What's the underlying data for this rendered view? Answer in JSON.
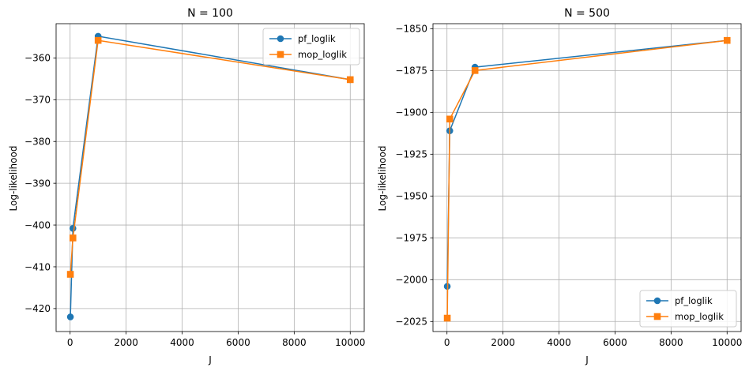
{
  "colors": {
    "pf": "#1f77b4",
    "mop": "#ff7f0e",
    "grid": "#b0b0b0"
  },
  "chart_data": [
    {
      "type": "line",
      "title": "N = 100",
      "xlabel": "J",
      "ylabel": "Log-likelihood",
      "xlim": [
        -500,
        10500
      ],
      "ylim": [
        -425.5,
        -351.8
      ],
      "xticks": [
        0,
        2000,
        4000,
        6000,
        8000,
        10000
      ],
      "xtick_labels": [
        "0",
        "2000",
        "4000",
        "6000",
        "8000",
        "10000"
      ],
      "yticks": [
        -420,
        -410,
        -400,
        -390,
        -380,
        -370,
        -360
      ],
      "ytick_labels": [
        "−420",
        "−410",
        "−400",
        "−390",
        "−380",
        "−370",
        "−360"
      ],
      "grid": true,
      "legend_loc": "upper right",
      "series": [
        {
          "name": "pf_loglik",
          "marker": "circle",
          "x": [
            10,
            100,
            1000,
            10000
          ],
          "y": [
            -422.0,
            -400.8,
            -354.8,
            -365.2
          ]
        },
        {
          "name": "mop_loglik",
          "marker": "square",
          "x": [
            10,
            100,
            1000,
            10000
          ],
          "y": [
            -411.8,
            -403.1,
            -355.8,
            -365.2
          ]
        }
      ]
    },
    {
      "type": "line",
      "title": "N = 500",
      "xlabel": "J",
      "ylabel": "Log-likelihood",
      "xlim": [
        -500,
        10500
      ],
      "ylim": [
        -2031,
        -1847
      ],
      "xticks": [
        0,
        2000,
        4000,
        6000,
        8000,
        10000
      ],
      "xtick_labels": [
        "0",
        "2000",
        "4000",
        "6000",
        "8000",
        "10000"
      ],
      "yticks": [
        -2025,
        -2000,
        -1975,
        -1950,
        -1925,
        -1900,
        -1875,
        -1850
      ],
      "ytick_labels": [
        "−2025",
        "−2000",
        "−1975",
        "−1950",
        "−1925",
        "−1900",
        "−1875",
        "−1850"
      ],
      "grid": true,
      "legend_loc": "lower right",
      "series": [
        {
          "name": "pf_loglik",
          "marker": "circle",
          "x": [
            10,
            100,
            1000,
            10000
          ],
          "y": [
            -2004,
            -1911,
            -1873,
            -1857
          ]
        },
        {
          "name": "mop_loglik",
          "marker": "square",
          "x": [
            10,
            100,
            1000,
            10000
          ],
          "y": [
            -2023,
            -1904,
            -1875,
            -1857
          ]
        }
      ]
    }
  ]
}
